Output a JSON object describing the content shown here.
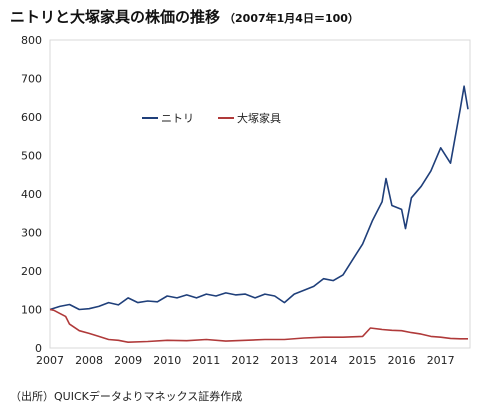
{
  "title": {
    "main": "ニトリと大塚家具の株価の推移",
    "sub": "（2007年1月4日＝100）"
  },
  "source": "（出所）QUICKデータよりマネックス証券作成",
  "chart_data": {
    "type": "line",
    "title": "ニトリと大塚家具の株価の推移",
    "subtitle": "（2007年1月4日＝100）",
    "xlabel": "",
    "ylabel": "",
    "xlim": [
      2007,
      2017.75
    ],
    "ylim": [
      0,
      800
    ],
    "yticks": [
      0,
      100,
      200,
      300,
      400,
      500,
      600,
      700,
      800
    ],
    "xticks": [
      "2007",
      "2008",
      "2009",
      "2010",
      "2011",
      "2012",
      "2013",
      "2014",
      "2015",
      "2016",
      "2017"
    ],
    "grid": false,
    "legend": "upper-left inside plot",
    "series": [
      {
        "name": "ニトリ",
        "color": "#1f3f7a",
        "x": [
          2007.0,
          2007.25,
          2007.5,
          2007.75,
          2008.0,
          2008.25,
          2008.5,
          2008.75,
          2009.0,
          2009.25,
          2009.5,
          2009.75,
          2010.0,
          2010.25,
          2010.5,
          2010.75,
          2011.0,
          2011.25,
          2011.5,
          2011.75,
          2012.0,
          2012.25,
          2012.5,
          2012.75,
          2013.0,
          2013.25,
          2013.5,
          2013.75,
          2014.0,
          2014.25,
          2014.5,
          2014.75,
          2015.0,
          2015.25,
          2015.5,
          2015.6,
          2015.75,
          2016.0,
          2016.1,
          2016.25,
          2016.5,
          2016.75,
          2017.0,
          2017.25,
          2017.5,
          2017.6,
          2017.7
        ],
        "y": [
          100,
          108,
          113,
          100,
          102,
          108,
          118,
          112,
          130,
          118,
          122,
          120,
          135,
          130,
          138,
          130,
          140,
          135,
          143,
          138,
          140,
          130,
          140,
          135,
          118,
          140,
          150,
          160,
          180,
          175,
          190,
          230,
          270,
          330,
          380,
          440,
          370,
          360,
          310,
          390,
          420,
          460,
          520,
          480,
          620,
          680,
          620
        ]
      },
      {
        "name": "大塚家具",
        "color": "#b03a3a",
        "x": [
          2007.0,
          2007.1,
          2007.25,
          2007.4,
          2007.5,
          2007.75,
          2008.0,
          2008.25,
          2008.5,
          2008.75,
          2009.0,
          2009.5,
          2010.0,
          2010.5,
          2011.0,
          2011.5,
          2012.0,
          2012.5,
          2013.0,
          2013.5,
          2014.0,
          2014.5,
          2015.0,
          2015.2,
          2015.5,
          2015.75,
          2016.0,
          2016.25,
          2016.5,
          2016.75,
          2017.0,
          2017.25,
          2017.5,
          2017.7
        ],
        "y": [
          100,
          98,
          90,
          82,
          62,
          45,
          38,
          30,
          22,
          20,
          15,
          17,
          20,
          19,
          22,
          18,
          20,
          22,
          22,
          26,
          28,
          28,
          30,
          52,
          48,
          46,
          45,
          40,
          36,
          30,
          28,
          25,
          24,
          24
        ]
      }
    ]
  }
}
